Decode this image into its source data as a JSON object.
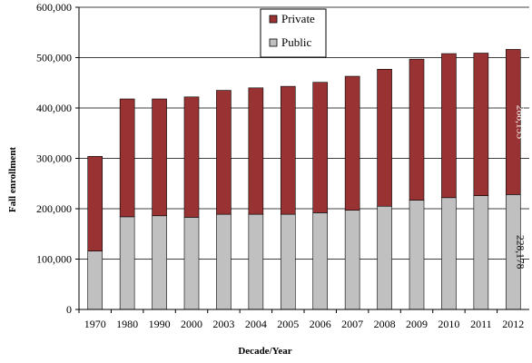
{
  "chart_data": {
    "type": "bar",
    "stacked": true,
    "title": "",
    "xlabel": "Decade/Year",
    "ylabel": "Fall enrollment",
    "ylim": [
      0,
      600000
    ],
    "yticks": [
      "0",
      "100,000",
      "200,000",
      "300,000",
      "400,000",
      "500,000",
      "600,000"
    ],
    "grid": true,
    "legend_position": "top-center",
    "categories": [
      "1970",
      "1980",
      "1990",
      "2000",
      "2003",
      "2004",
      "2005",
      "2006",
      "2007",
      "2008",
      "2009",
      "2010",
      "2011",
      "2012"
    ],
    "series": [
      {
        "name": "Public",
        "color": "#c0c0c0",
        "values": [
          116000,
          184000,
          186000,
          183000,
          189000,
          189000,
          189000,
          192000,
          197000,
          205000,
          217000,
          222000,
          226000,
          228178
        ]
      },
      {
        "name": "Private",
        "color": "#993333",
        "values": [
          188000,
          234000,
          232000,
          239000,
          246000,
          251000,
          254000,
          259000,
          266000,
          272000,
          280000,
          286000,
          283000,
          288153
        ]
      }
    ],
    "data_labels": {
      "public_last": "228,178",
      "private_last": "288,153"
    }
  }
}
